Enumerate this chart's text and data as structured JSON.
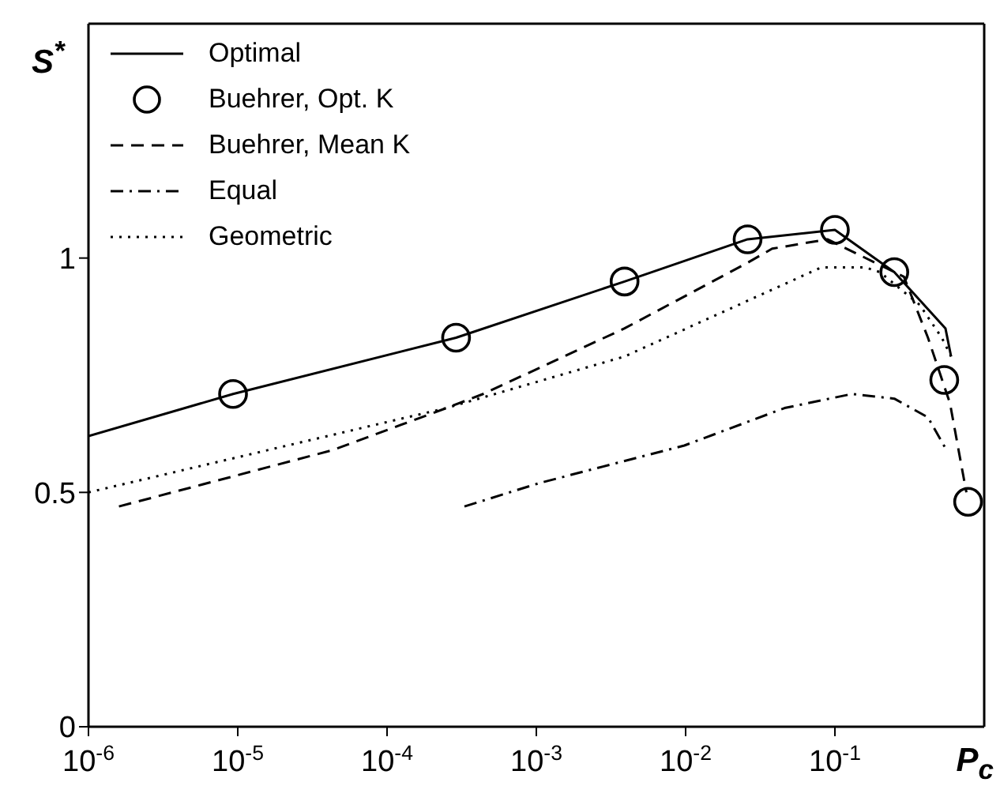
{
  "chart_data": {
    "type": "line",
    "xlabel": "P$_{c}$",
    "ylabel": "S$^{*}$",
    "log": "x",
    "xlim": [
      1e-06,
      1
    ],
    "xticks": [
      {
        "value": 1e-06,
        "label": "10$^{-6}$"
      },
      {
        "value": 1e-05,
        "label": "10$^{-5}$"
      },
      {
        "value": 0.0001,
        "label": "10$^{-4}$"
      },
      {
        "value": 0.001,
        "label": "10$^{-3}$"
      },
      {
        "value": 0.01,
        "label": "10$^{-2}$"
      },
      {
        "value": 0.1,
        "label": "10$^{-1}$"
      }
    ],
    "ylim": [
      0,
      1.5
    ],
    "yticks": [
      0,
      0.5,
      1
    ],
    "legend": "top left",
    "series": [
      {
        "name": "Optimal",
        "color": "#000000",
        "line_style": "solid",
        "marker": "none",
        "x": [
          1e-06,
          9.3e-06,
          0.00029,
          0.0039,
          0.026,
          0.1,
          0.25,
          0.55,
          0.6
        ],
        "values": [
          0.62,
          0.71,
          0.83,
          0.95,
          1.04,
          1.06,
          0.97,
          0.85,
          0.79
        ]
      },
      {
        "name": "Buehrer, Opt. K",
        "type": "scatter",
        "color": "#000000",
        "marker": "circle",
        "x": [
          9.3e-06,
          0.00029,
          0.0039,
          0.026,
          0.1,
          0.25,
          0.54,
          0.78
        ],
        "values": [
          0.71,
          0.83,
          0.95,
          1.04,
          1.06,
          0.97,
          0.74,
          0.48
        ]
      },
      {
        "name": "Buehrer, Mean K",
        "color": "#000000",
        "line_style": "dashed",
        "marker": "none",
        "x": [
          1.6e-06,
          4.3e-05,
          0.00025,
          0.00044,
          0.0039,
          0.026,
          0.038,
          0.089,
          0.29,
          0.42,
          0.59,
          0.72,
          0.76
        ],
        "values": [
          0.47,
          0.59,
          0.68,
          0.71,
          0.85,
          0.99,
          1.02,
          1.04,
          0.96,
          0.83,
          0.69,
          0.54,
          0.5
        ]
      },
      {
        "name": "Equal",
        "color": "#000000",
        "line_style": "dashdot",
        "marker": "none",
        "x": [
          0.00033,
          0.00105,
          0.0098,
          0.046,
          0.13,
          0.25,
          0.42,
          0.56
        ],
        "values": [
          0.47,
          0.52,
          0.6,
          0.68,
          0.71,
          0.7,
          0.66,
          0.59
        ]
      },
      {
        "name": "Geometric",
        "color": "#000000",
        "line_style": "dotted",
        "marker": "none",
        "x": [
          1e-06,
          0.00025,
          0.0039,
          0.081,
          0.16,
          0.2,
          0.37,
          0.52,
          0.6
        ],
        "values": [
          0.5,
          0.68,
          0.79,
          0.98,
          0.98,
          0.97,
          0.9,
          0.83,
          0.79
        ]
      }
    ]
  }
}
